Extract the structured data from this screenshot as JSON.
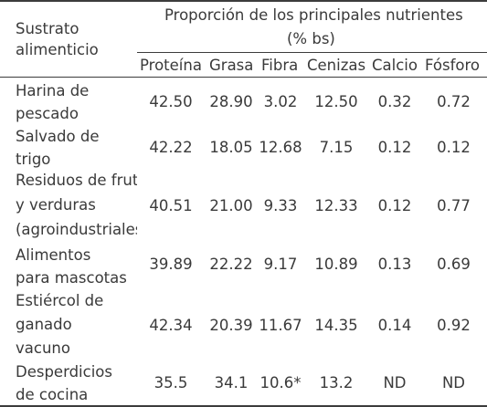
{
  "table": {
    "header": {
      "sustrato": [
        "Sustrato",
        "alimenticio"
      ],
      "group_title": [
        "Proporción de los principales nutrientes",
        "(% bs)"
      ],
      "columns": [
        "Proteína",
        "Grasa",
        "Fibra",
        "Cenizas",
        "Calcio",
        "Fósforo"
      ]
    },
    "rows": [
      {
        "name": [
          "Harina de",
          "pescado"
        ],
        "values": [
          "42.50",
          "28.90",
          "3.02",
          "12.50",
          "0.32",
          "0.72"
        ]
      },
      {
        "name": [
          "Salvado de",
          "trigo"
        ],
        "values": [
          "42.22",
          "18.05",
          "12.68",
          "7.15",
          "0.12",
          "0.12"
        ]
      },
      {
        "name": [
          "Residuos de fruta",
          "y verduras",
          "(agroindustriales)"
        ],
        "values": [
          "40.51",
          "21.00",
          "9.33",
          "12.33",
          "0.12",
          "0.77"
        ]
      },
      {
        "name": [
          "Alimentos",
          "para mascotas"
        ],
        "values": [
          "39.89",
          "22.22",
          "9.17",
          "10.89",
          "0.13",
          "0.69"
        ]
      },
      {
        "name": [
          "Estiércol de",
          "ganado",
          "vacuno"
        ],
        "values": [
          "42.34",
          "20.39",
          "11.67",
          "14.35",
          "0.14",
          "0.92"
        ]
      },
      {
        "name": [
          "Desperdicios",
          "de cocina"
        ],
        "values": [
          "35.5",
          "34.1",
          "10.6*",
          "13.2",
          "ND",
          "ND"
        ]
      }
    ]
  }
}
